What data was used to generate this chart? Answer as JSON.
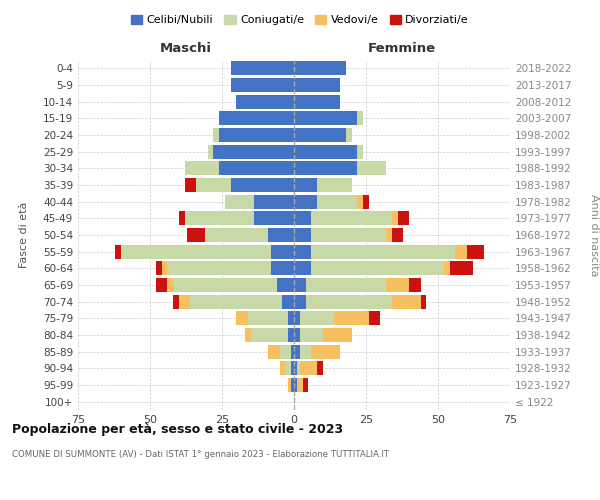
{
  "age_groups": [
    "100+",
    "95-99",
    "90-94",
    "85-89",
    "80-84",
    "75-79",
    "70-74",
    "65-69",
    "60-64",
    "55-59",
    "50-54",
    "45-49",
    "40-44",
    "35-39",
    "30-34",
    "25-29",
    "20-24",
    "15-19",
    "10-14",
    "5-9",
    "0-4"
  ],
  "birth_years": [
    "≤ 1922",
    "1923-1927",
    "1928-1932",
    "1933-1937",
    "1938-1942",
    "1943-1947",
    "1948-1952",
    "1953-1957",
    "1958-1962",
    "1963-1967",
    "1968-1972",
    "1973-1977",
    "1978-1982",
    "1983-1987",
    "1988-1992",
    "1993-1997",
    "1998-2002",
    "2003-2007",
    "2008-2012",
    "2013-2017",
    "2018-2022"
  ],
  "maschi": {
    "celibi": [
      0,
      1,
      1,
      1,
      2,
      2,
      4,
      6,
      8,
      8,
      9,
      14,
      14,
      22,
      26,
      28,
      26,
      26,
      20,
      22,
      22
    ],
    "coniugati": [
      0,
      0,
      2,
      4,
      13,
      14,
      32,
      36,
      36,
      52,
      22,
      24,
      10,
      12,
      12,
      2,
      2,
      0,
      0,
      0,
      0
    ],
    "vedovi": [
      0,
      1,
      2,
      4,
      2,
      4,
      4,
      2,
      2,
      0,
      0,
      0,
      0,
      0,
      0,
      0,
      0,
      0,
      0,
      0,
      0
    ],
    "divorziati": [
      0,
      0,
      0,
      0,
      0,
      0,
      2,
      4,
      2,
      2,
      6,
      2,
      0,
      4,
      0,
      0,
      0,
      0,
      0,
      0,
      0
    ]
  },
  "femmine": {
    "nubili": [
      0,
      1,
      1,
      2,
      2,
      2,
      4,
      4,
      6,
      6,
      6,
      6,
      8,
      8,
      22,
      22,
      18,
      22,
      16,
      16,
      18
    ],
    "coniugate": [
      0,
      0,
      1,
      4,
      8,
      12,
      30,
      28,
      46,
      50,
      26,
      28,
      14,
      12,
      10,
      2,
      2,
      2,
      0,
      0,
      0
    ],
    "vedove": [
      0,
      2,
      6,
      10,
      10,
      12,
      10,
      8,
      2,
      4,
      2,
      2,
      2,
      0,
      0,
      0,
      0,
      0,
      0,
      0,
      0
    ],
    "divorziate": [
      0,
      2,
      2,
      0,
      0,
      4,
      2,
      4,
      8,
      6,
      4,
      4,
      2,
      0,
      0,
      0,
      0,
      0,
      0,
      0,
      0
    ]
  },
  "colors": {
    "celibi": "#4472C4",
    "coniugati": "#C8D9A8",
    "vedovi": "#F6C060",
    "divorziati": "#CC1111"
  },
  "title": "Popolazione per età, sesso e stato civile - 2023",
  "subtitle": "COMUNE DI SUMMONTE (AV) - Dati ISTAT 1° gennaio 2023 - Elaborazione TUTTITALIA.IT",
  "xlabel_left": "Maschi",
  "xlabel_right": "Femmine",
  "ylabel_left": "Fasce di età",
  "ylabel_right": "Anni di nascita",
  "xlim": 75,
  "bg_color": "#ffffff",
  "grid_color": "#cccccc",
  "legend_labels": [
    "Celibi/Nubili",
    "Coniugati/e",
    "Vedovi/e",
    "Divorziati/e"
  ]
}
